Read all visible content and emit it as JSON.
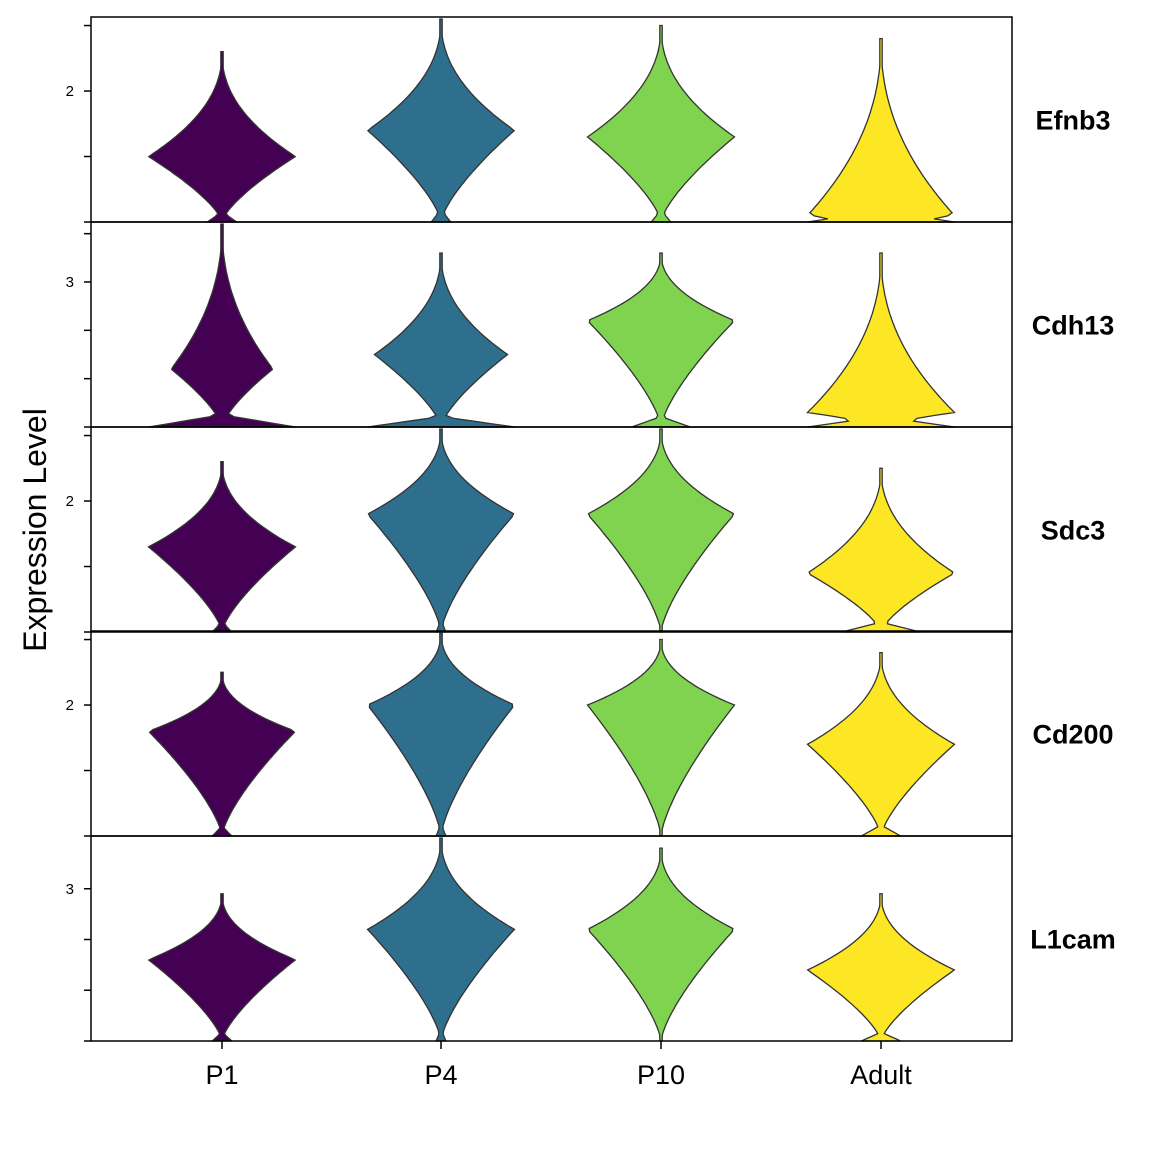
{
  "chart_data": {
    "type": "violin",
    "ylabel": "Expression Level",
    "categories": [
      "P1",
      "P4",
      "P10",
      "Adult"
    ],
    "colors": {
      "P1": "#440154",
      "P4": "#2E6F8E",
      "P10": "#7FD34E",
      "Adult": "#FDE725"
    },
    "panels": [
      {
        "gene": "Efnb3",
        "ylim": [
          0,
          3.1
        ],
        "ticks": [
          0,
          1,
          2,
          3
        ],
        "tick_labels": {
          "2": "2"
        },
        "violins": [
          {
            "category": "P1",
            "mode": 1.0,
            "top": 2.6,
            "bottom": 0,
            "spread": 0.75,
            "zero_bulb": 0.15
          },
          {
            "category": "P4",
            "mode": 1.4,
            "top": 3.1,
            "bottom": 0,
            "spread": 0.75,
            "zero_bulb": 0.1
          },
          {
            "category": "P10",
            "mode": 1.3,
            "top": 3.0,
            "bottom": 0,
            "spread": 0.75,
            "zero_bulb": 0.1
          },
          {
            "category": "Adult",
            "mode": 0.1,
            "top": 2.8,
            "bottom": 0,
            "spread": 0.75,
            "zero_bulb": 0.75
          }
        ]
      },
      {
        "gene": "Cdh13",
        "ylim": [
          0,
          4.2
        ],
        "ticks": [
          0,
          1,
          2,
          3,
          4
        ],
        "tick_labels": {
          "3": "3"
        },
        "violins": [
          {
            "category": "P1",
            "mode": 1.2,
            "top": 4.2,
            "bottom": 0,
            "spread": 0.52,
            "zero_bulb": 0.75
          },
          {
            "category": "P4",
            "mode": 1.5,
            "top": 3.6,
            "bottom": 0,
            "spread": 0.68,
            "zero_bulb": 0.75
          },
          {
            "category": "P10",
            "mode": 2.2,
            "top": 3.6,
            "bottom": 0,
            "spread": 0.75,
            "zero_bulb": 0.3
          },
          {
            "category": "Adult",
            "mode": 0.3,
            "top": 3.6,
            "bottom": 0,
            "spread": 0.75,
            "zero_bulb": 0.75
          }
        ]
      },
      {
        "gene": "Sdc3",
        "ylim": [
          0,
          3.1
        ],
        "ticks": [
          0,
          1,
          2,
          3
        ],
        "tick_labels": {
          "2": "2"
        },
        "violins": [
          {
            "category": "P1",
            "mode": 1.3,
            "top": 2.6,
            "bottom": 0,
            "spread": 0.75,
            "zero_bulb": 0.1
          },
          {
            "category": "P4",
            "mode": 1.8,
            "top": 3.1,
            "bottom": 0,
            "spread": 0.75,
            "zero_bulb": 0.05
          },
          {
            "category": "P10",
            "mode": 1.8,
            "top": 3.1,
            "bottom": 0,
            "spread": 0.75,
            "zero_bulb": 0
          },
          {
            "category": "Adult",
            "mode": 0.9,
            "top": 2.5,
            "bottom": 0,
            "spread": 0.75,
            "zero_bulb": 0.4
          }
        ]
      },
      {
        "gene": "Cd200",
        "ylim": [
          0,
          3.1
        ],
        "ticks": [
          0,
          1,
          2,
          3
        ],
        "tick_labels": {
          "2": "2"
        },
        "violins": [
          {
            "category": "P1",
            "mode": 1.6,
            "top": 2.5,
            "bottom": 0,
            "spread": 0.75,
            "zero_bulb": 0.1
          },
          {
            "category": "P4",
            "mode": 2.0,
            "top": 3.1,
            "bottom": 0,
            "spread": 0.75,
            "zero_bulb": 0.05
          },
          {
            "category": "P10",
            "mode": 2.0,
            "top": 3.0,
            "bottom": 0,
            "spread": 0.75,
            "zero_bulb": 0
          },
          {
            "category": "Adult",
            "mode": 1.4,
            "top": 2.8,
            "bottom": 0,
            "spread": 0.75,
            "zero_bulb": 0.2
          }
        ]
      },
      {
        "gene": "L1cam",
        "ylim": [
          0,
          4.0
        ],
        "ticks": [
          0,
          1,
          2,
          3
        ],
        "tick_labels": {
          "3": "3"
        },
        "violins": [
          {
            "category": "P1",
            "mode": 1.6,
            "top": 2.9,
            "bottom": 0,
            "spread": 0.75,
            "zero_bulb": 0.1
          },
          {
            "category": "P4",
            "mode": 2.2,
            "top": 4.0,
            "bottom": 0,
            "spread": 0.75,
            "zero_bulb": 0.05
          },
          {
            "category": "P10",
            "mode": 2.2,
            "top": 3.8,
            "bottom": 0,
            "spread": 0.75,
            "zero_bulb": 0
          },
          {
            "category": "Adult",
            "mode": 1.4,
            "top": 2.9,
            "bottom": 0,
            "spread": 0.75,
            "zero_bulb": 0.2
          }
        ]
      }
    ]
  }
}
